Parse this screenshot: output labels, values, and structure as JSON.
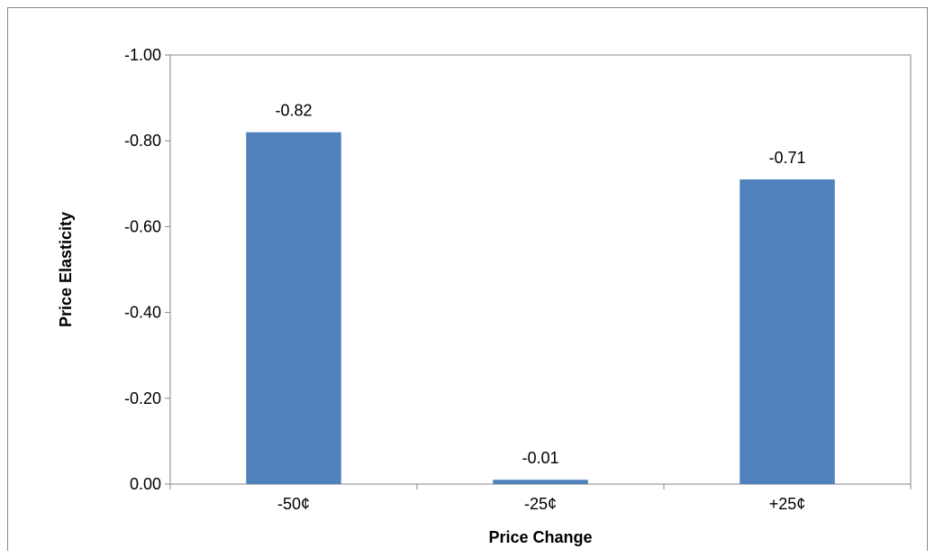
{
  "chart_data": {
    "type": "bar",
    "categories": [
      "-50¢",
      "-25¢",
      "+25¢"
    ],
    "values": [
      -0.82,
      -0.01,
      -0.71
    ],
    "data_labels": [
      "-0.82",
      "-0.01",
      "-0.71"
    ],
    "title": "",
    "xlabel": "Price Change",
    "ylabel": "Price Elasticity",
    "ylim": [
      0.0,
      -1.0
    ],
    "y_axis_reversed": true,
    "yticks": [
      0.0,
      -0.2,
      -0.4,
      -0.6,
      -0.8,
      -1.0
    ],
    "ytick_labels": [
      "0.00",
      "-0.20",
      "-0.40",
      "-0.60",
      "-0.80",
      "-1.00"
    ],
    "grid": false,
    "legend": "none",
    "bar_color": "#4F81BD",
    "plot_border_color": "#868686"
  }
}
